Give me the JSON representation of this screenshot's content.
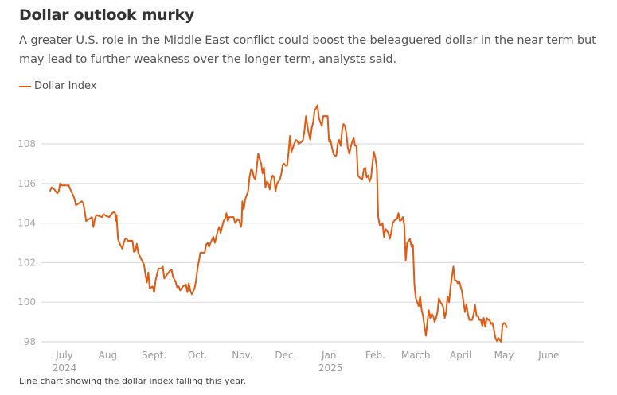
{
  "header": {
    "title": "Dollar outlook murky",
    "subtitle": "A greater U.S. role in the Middle East conflict could boost the beleaguered dollar in the near term but may lead to further weakness over the longer term, analysts said."
  },
  "caption": "Line chart showing the dollar index falling this year.",
  "chart_data": {
    "type": "line",
    "title": "Dollar outlook murky",
    "xlabel": "",
    "ylabel": "",
    "ylim": [
      98,
      110
    ],
    "y_ticks": [
      "98",
      "100",
      "102",
      "104",
      "106",
      "108"
    ],
    "y_tick_values": [
      98,
      100,
      102,
      104,
      106,
      108
    ],
    "x_ticks": [
      {
        "label": "July",
        "sub": "2024",
        "day": 0
      },
      {
        "label": "Aug.",
        "sub": "",
        "day": 31
      },
      {
        "label": "Sept.",
        "sub": "",
        "day": 62
      },
      {
        "label": "Oct.",
        "sub": "",
        "day": 92
      },
      {
        "label": "Nov.",
        "sub": "",
        "day": 123
      },
      {
        "label": "Dec.",
        "sub": "",
        "day": 153
      },
      {
        "label": "Jan.",
        "sub": "2025",
        "day": 184
      },
      {
        "label": "Feb.",
        "sub": "",
        "day": 215
      },
      {
        "label": "March",
        "sub": "",
        "day": 243
      },
      {
        "label": "April",
        "sub": "",
        "day": 274
      },
      {
        "label": "May",
        "sub": "",
        "day": 304
      },
      {
        "label": "June",
        "sub": "",
        "day": 335
      }
    ],
    "x_unit": "days since July 1, 2024",
    "grid": true,
    "legend_position": "top-left",
    "color": "#e05a12",
    "series": [
      {
        "name": "Dollar Index",
        "points": [
          [
            -10,
            105.6
          ],
          [
            -9,
            105.8
          ],
          [
            -7,
            105.7
          ],
          [
            -5,
            105.5
          ],
          [
            -4,
            105.6
          ],
          [
            -3,
            106.0
          ],
          [
            -2,
            105.9
          ],
          [
            0,
            105.9
          ],
          [
            2,
            105.9
          ],
          [
            3,
            105.9
          ],
          [
            4,
            105.7
          ],
          [
            6,
            105.4
          ],
          [
            7,
            105.2
          ],
          [
            8,
            104.9
          ],
          [
            10,
            105.0
          ],
          [
            12,
            105.1
          ],
          [
            13,
            105.0
          ],
          [
            14,
            104.6
          ],
          [
            15,
            104.1
          ],
          [
            17,
            104.2
          ],
          [
            19,
            104.3
          ],
          [
            20,
            103.8
          ],
          [
            21,
            104.2
          ],
          [
            22,
            104.4
          ],
          [
            24,
            104.35
          ],
          [
            26,
            104.3
          ],
          [
            27,
            104.45
          ],
          [
            29,
            104.35
          ],
          [
            31,
            104.3
          ],
          [
            33,
            104.5
          ],
          [
            34,
            104.55
          ],
          [
            35,
            104.5
          ],
          [
            35.5,
            104.1
          ],
          [
            36,
            104.4
          ],
          [
            37,
            103.2
          ],
          [
            38,
            103.0
          ],
          [
            40,
            102.7
          ],
          [
            41,
            103.0
          ],
          [
            42,
            103.2
          ],
          [
            43,
            103.2
          ],
          [
            44,
            103.1
          ],
          [
            47,
            103.1
          ],
          [
            48,
            102.55
          ],
          [
            49,
            102.6
          ],
          [
            50,
            102.95
          ],
          [
            51,
            102.5
          ],
          [
            53,
            102.2
          ],
          [
            55,
            101.9
          ],
          [
            56,
            101.4
          ],
          [
            57,
            101.0
          ],
          [
            58,
            101.5
          ],
          [
            59,
            100.7
          ],
          [
            60,
            100.75
          ],
          [
            61,
            100.8
          ],
          [
            62,
            100.5
          ],
          [
            63,
            101.1
          ],
          [
            65,
            101.7
          ],
          [
            67,
            101.7
          ],
          [
            68,
            101.8
          ],
          [
            69,
            101.2
          ],
          [
            71,
            101.4
          ],
          [
            73,
            101.6
          ],
          [
            74,
            101.65
          ],
          [
            75,
            101.3
          ],
          [
            77,
            101.0
          ],
          [
            78,
            100.75
          ],
          [
            79,
            100.8
          ],
          [
            80,
            100.6
          ],
          [
            82,
            100.8
          ],
          [
            84,
            100.9
          ],
          [
            85,
            100.5
          ],
          [
            86,
            100.95
          ],
          [
            87,
            100.6
          ],
          [
            88,
            100.4
          ],
          [
            90,
            100.7
          ],
          [
            91,
            101.1
          ],
          [
            92,
            101.7
          ],
          [
            94,
            102.5
          ],
          [
            97,
            102.5
          ],
          [
            98,
            102.9
          ],
          [
            99,
            103.0
          ],
          [
            100,
            102.8
          ],
          [
            101,
            103.0
          ],
          [
            103,
            103.3
          ],
          [
            104,
            103.0
          ],
          [
            106,
            103.6
          ],
          [
            107,
            103.8
          ],
          [
            108,
            103.5
          ],
          [
            110,
            104.1
          ],
          [
            111,
            104.2
          ],
          [
            112,
            104.5
          ],
          [
            113,
            104.1
          ],
          [
            114,
            104.3
          ],
          [
            116,
            104.3
          ],
          [
            117,
            104.3
          ],
          [
            118,
            104.0
          ],
          [
            119,
            104.1
          ],
          [
            120,
            104.2
          ],
          [
            121,
            104.1
          ],
          [
            122,
            103.8
          ],
          [
            122.5,
            104.0
          ],
          [
            123,
            105.1
          ],
          [
            124,
            104.7
          ],
          [
            125,
            105.2
          ],
          [
            127,
            105.6
          ],
          [
            128,
            106.3
          ],
          [
            129,
            106.7
          ],
          [
            130,
            106.65
          ],
          [
            131,
            106.3
          ],
          [
            132,
            106.2
          ],
          [
            133,
            106.8
          ],
          [
            134,
            107.5
          ],
          [
            136,
            107.0
          ],
          [
            137,
            106.5
          ],
          [
            138,
            106.8
          ],
          [
            139,
            105.8
          ],
          [
            140,
            106.1
          ],
          [
            141,
            106.0
          ],
          [
            142,
            105.7
          ],
          [
            143,
            106.2
          ],
          [
            144,
            106.4
          ],
          [
            145,
            106.3
          ],
          [
            146,
            105.6
          ],
          [
            147,
            106.0
          ],
          [
            148,
            106.1
          ],
          [
            149,
            106.2
          ],
          [
            150,
            106.5
          ],
          [
            151,
            106.95
          ],
          [
            152,
            107.0
          ],
          [
            153,
            106.9
          ],
          [
            154,
            106.9
          ],
          [
            155,
            107.6
          ],
          [
            156,
            108.4
          ],
          [
            157,
            107.6
          ],
          [
            158,
            107.8
          ],
          [
            159,
            108.0
          ],
          [
            160,
            108.2
          ],
          [
            161,
            108.15
          ],
          [
            162,
            108.0
          ],
          [
            163,
            108.05
          ],
          [
            164,
            108.1
          ],
          [
            165,
            108.2
          ],
          [
            166,
            108.7
          ],
          [
            167,
            109.4
          ],
          [
            168,
            108.9
          ],
          [
            169,
            108.5
          ],
          [
            170,
            108.2
          ],
          [
            171,
            108.8
          ],
          [
            172,
            109.1
          ],
          [
            173,
            109.7
          ],
          [
            174,
            109.8
          ],
          [
            175,
            109.95
          ],
          [
            176,
            109.3
          ],
          [
            177,
            109.1
          ],
          [
            178,
            108.9
          ],
          [
            179,
            109.4
          ],
          [
            181,
            109.4
          ],
          [
            182,
            109.4
          ],
          [
            183,
            108.1
          ],
          [
            184,
            108.2
          ],
          [
            185,
            107.8
          ],
          [
            186,
            107.5
          ],
          [
            187,
            107.4
          ],
          [
            188,
            107.4
          ],
          [
            189,
            108.0
          ],
          [
            190,
            108.2
          ],
          [
            191,
            107.9
          ],
          [
            192,
            108.7
          ],
          [
            193,
            109.0
          ],
          [
            194,
            108.9
          ],
          [
            195,
            108.5
          ],
          [
            196,
            107.8
          ],
          [
            197,
            107.5
          ],
          [
            198,
            107.85
          ],
          [
            199,
            108.1
          ],
          [
            200,
            108.3
          ],
          [
            201,
            107.9
          ],
          [
            202,
            107.9
          ],
          [
            203,
            106.4
          ],
          [
            204,
            106.3
          ],
          [
            205,
            106.25
          ],
          [
            206,
            106.2
          ],
          [
            207,
            106.7
          ],
          [
            208,
            106.8
          ],
          [
            209,
            106.3
          ],
          [
            210,
            106.4
          ],
          [
            211,
            106.1
          ],
          [
            212,
            106.3
          ],
          [
            213,
            107.0
          ],
          [
            214,
            107.6
          ],
          [
            215,
            107.3
          ],
          [
            216,
            106.8
          ],
          [
            217,
            104.3
          ],
          [
            218,
            103.9
          ],
          [
            219,
            103.9
          ],
          [
            220,
            104.0
          ],
          [
            221,
            103.3
          ],
          [
            222,
            103.7
          ],
          [
            223,
            103.6
          ],
          [
            224,
            103.5
          ],
          [
            225,
            103.2
          ],
          [
            226,
            103.5
          ],
          [
            227,
            104.0
          ],
          [
            228,
            104.1
          ],
          [
            229,
            104.2
          ],
          [
            230,
            104.2
          ],
          [
            231,
            104.5
          ],
          [
            232,
            104.1
          ],
          [
            233,
            104.15
          ],
          [
            234,
            104.3
          ],
          [
            235,
            103.9
          ],
          [
            236,
            102.1
          ],
          [
            237,
            103.0
          ],
          [
            238,
            103.1
          ],
          [
            239,
            103.2
          ],
          [
            240,
            102.8
          ],
          [
            241,
            102.9
          ],
          [
            242,
            100.9
          ],
          [
            243,
            100.2
          ],
          [
            244,
            100.0
          ],
          [
            245,
            99.8
          ],
          [
            246,
            100.3
          ],
          [
            247,
            99.6
          ],
          [
            248,
            99.3
          ],
          [
            249,
            98.75
          ],
          [
            250,
            98.3
          ],
          [
            251,
            99.0
          ],
          [
            252,
            99.6
          ],
          [
            253,
            99.2
          ],
          [
            254,
            99.4
          ],
          [
            255,
            99.3
          ],
          [
            256,
            99.0
          ],
          [
            257,
            99.2
          ],
          [
            258,
            99.5
          ],
          [
            259,
            100.2
          ],
          [
            260,
            100.0
          ],
          [
            261,
            99.9
          ],
          [
            262,
            99.75
          ],
          [
            263,
            99.2
          ],
          [
            264,
            99.5
          ],
          [
            265,
            100.3
          ],
          [
            266,
            100.0
          ],
          [
            267,
            100.75
          ],
          [
            268,
            101.3
          ],
          [
            269,
            101.8
          ],
          [
            270,
            101.1
          ],
          [
            271,
            101.1
          ],
          [
            272,
            100.95
          ],
          [
            273,
            101.05
          ],
          [
            274,
            100.8
          ],
          [
            275,
            100.5
          ],
          [
            276,
            100.0
          ],
          [
            277,
            99.5
          ],
          [
            278,
            99.9
          ],
          [
            279,
            99.4
          ],
          [
            280,
            99.1
          ],
          [
            282,
            99.1
          ],
          [
            283,
            99.4
          ],
          [
            284,
            99.85
          ],
          [
            285,
            99.3
          ],
          [
            286,
            99.3
          ],
          [
            287,
            99.1
          ],
          [
            288,
            99.1
          ],
          [
            289,
            98.8
          ],
          [
            290,
            99.2
          ],
          [
            291,
            98.75
          ],
          [
            292,
            99.2
          ],
          [
            293,
            99.1
          ],
          [
            294,
            99.1
          ],
          [
            295,
            98.9
          ],
          [
            296,
            98.95
          ],
          [
            297,
            98.6
          ],
          [
            298,
            98.2
          ],
          [
            299,
            98.05
          ],
          [
            300,
            98.2
          ],
          [
            301,
            98.1
          ],
          [
            302,
            98.0
          ],
          [
            303,
            98.85
          ],
          [
            304,
            98.95
          ],
          [
            305,
            98.9
          ],
          [
            306,
            98.7
          ]
        ]
      }
    ]
  }
}
